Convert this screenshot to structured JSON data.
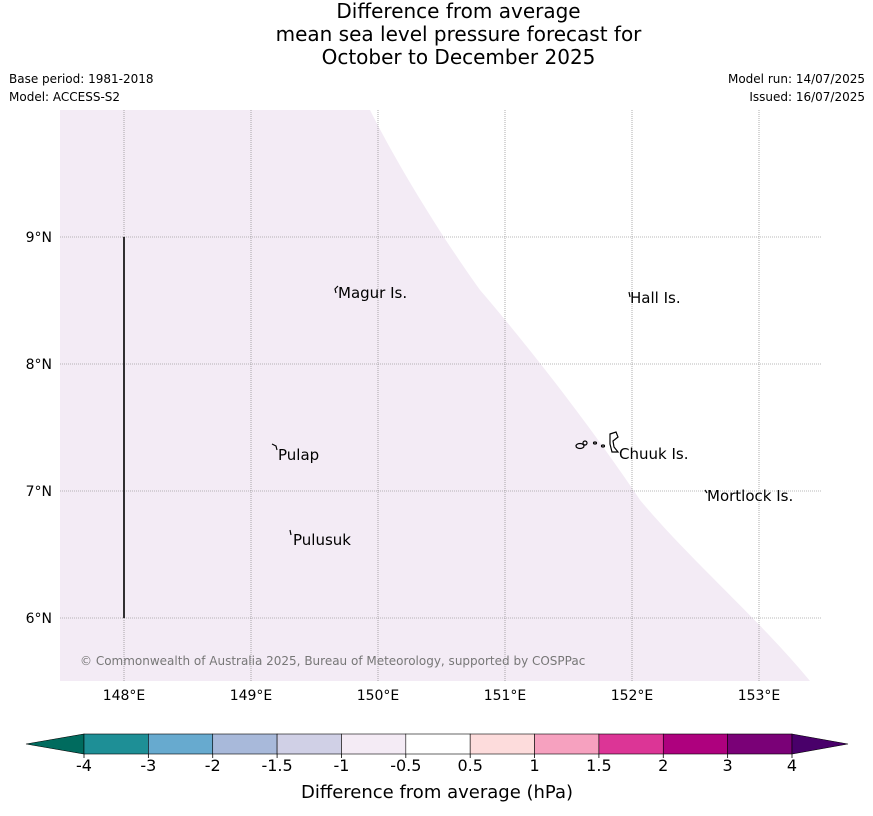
{
  "header": {
    "title_lines": [
      "Difference from average",
      "mean sea level pressure forecast for",
      "October to December 2025"
    ],
    "base_period": "Base period: 1981-2018",
    "model": "Model: ACCESS-S2",
    "model_run": "Model run: 14/07/2025",
    "issued": "Issued: 16/07/2025"
  },
  "map": {
    "lat_labels": [
      "9°N",
      "8°N",
      "7°N",
      "6°N"
    ],
    "lon_labels": [
      "148°E",
      "149°E",
      "150°E",
      "151°E",
      "152°E",
      "153°E"
    ],
    "places": [
      "Magur Is.",
      "Hall Is.",
      "Pulap",
      "Chuuk Is.",
      "Mortlock Is.",
      "Pulusuk"
    ],
    "copyright": "© Commonwealth of Australia 2025, Bureau of Meteorology, supported by COSPPac",
    "shading_color": "#f3ebf5"
  },
  "colorbar": {
    "title": "Difference from average (hPa)",
    "ticks": [
      "-4",
      "-3",
      "-2",
      "-1.5",
      "-1",
      "-0.5",
      "0.5",
      "1",
      "1.5",
      "2",
      "3",
      "4"
    ],
    "colors": [
      "#006b5e",
      "#1e8f96",
      "#67aacf",
      "#a8b9da",
      "#d0d0e6",
      "#f4ebf5",
      "#ffffff",
      "#fddcdc",
      "#f6a1bf",
      "#dc3596",
      "#ae017e",
      "#7a0177",
      "#49006a"
    ]
  }
}
